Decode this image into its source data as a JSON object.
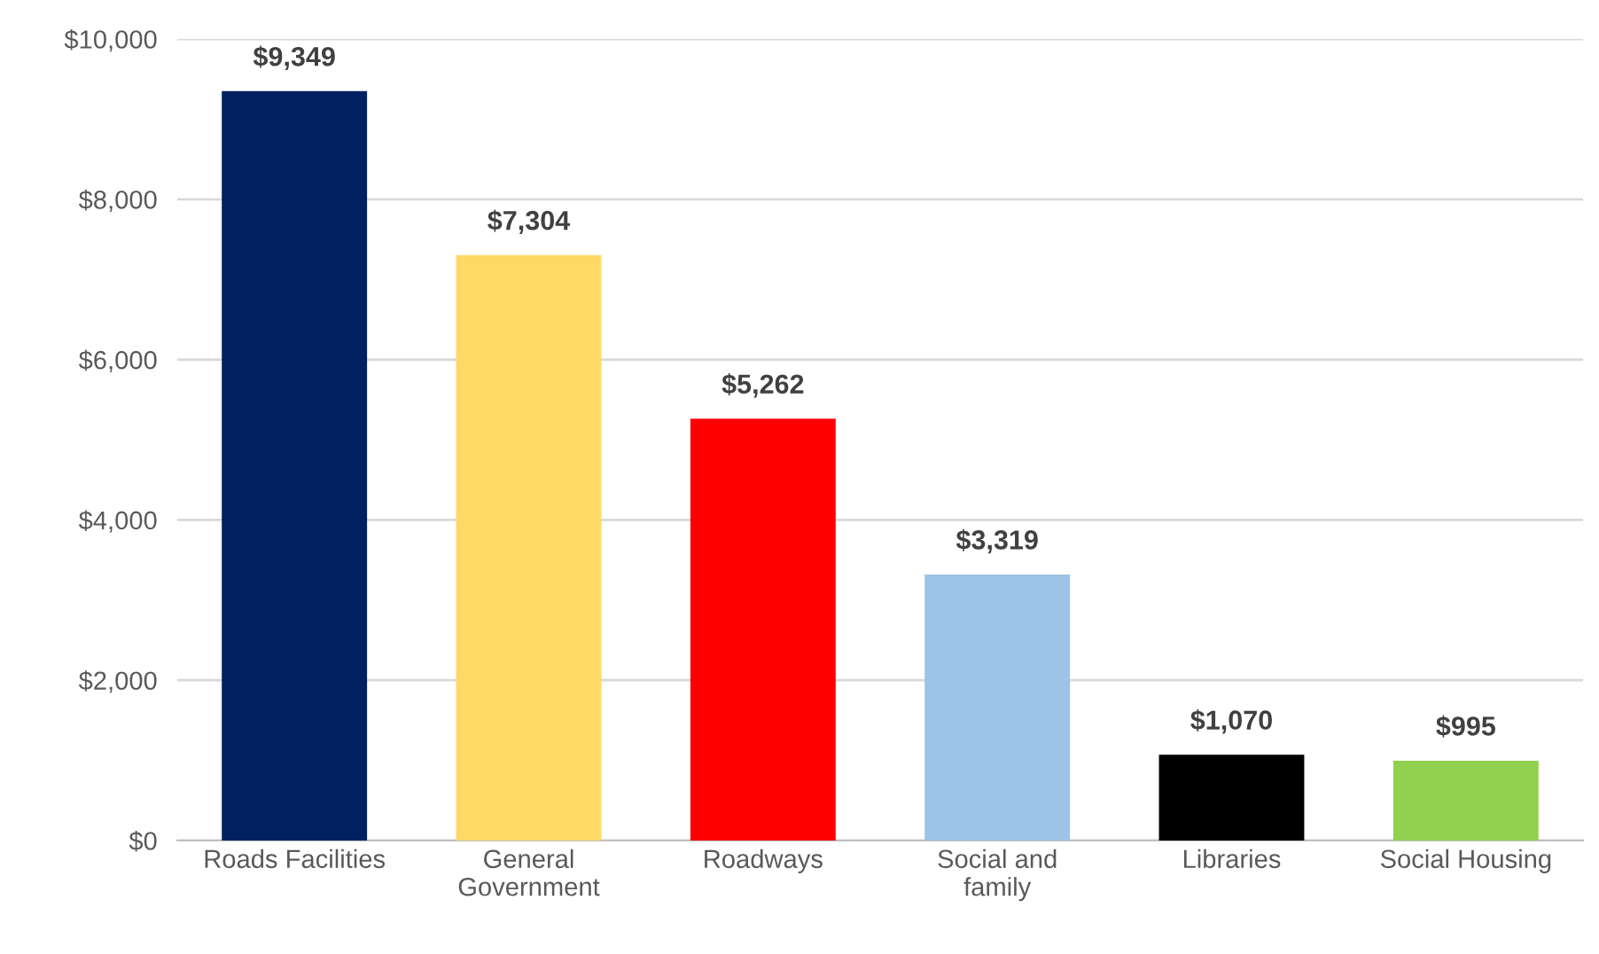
{
  "chart_data": {
    "type": "bar",
    "categories": [
      "Roads Facilities",
      "General\nGovernment",
      "Roadways",
      "Social and\nfamily",
      "Libraries",
      "Social Housing"
    ],
    "values": [
      9349,
      7304,
      5262,
      3319,
      1070,
      995
    ],
    "colors": [
      "#002060",
      "#ffd966",
      "#ff0000",
      "#9dc3e6",
      "#000000",
      "#92d050"
    ],
    "value_labels": [
      "$9,349",
      "$7,304",
      "$5,262",
      "$3,319",
      "$1,070",
      "$995"
    ],
    "ylim": [
      0,
      10000
    ],
    "yticks": [
      {
        "value": 0,
        "label": "$0"
      },
      {
        "value": 2000,
        "label": "$2,000"
      },
      {
        "value": 4000,
        "label": "$4,000"
      },
      {
        "value": 6000,
        "label": "$6,000"
      },
      {
        "value": 8000,
        "label": "$8,000"
      },
      {
        "value": 10000,
        "label": "$10,000"
      }
    ],
    "grid": "y",
    "legend": false
  }
}
